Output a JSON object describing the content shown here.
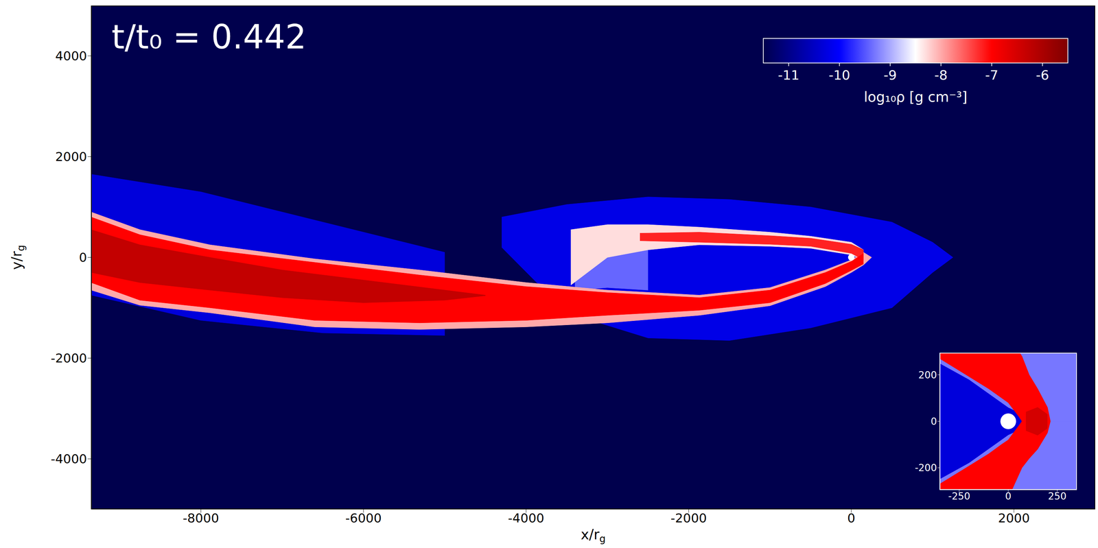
{
  "chart_data": [
    {
      "type": "density_map",
      "annotation": "t/t₀ = 0.442",
      "x_label": "x/rg",
      "y_label": "y/rg",
      "xlim": [
        -9350,
        3000
      ],
      "ylim": [
        -5000,
        5000
      ],
      "xticks": [
        -8000,
        -6000,
        -4000,
        -2000,
        0,
        2000
      ],
      "yticks": [
        -4000,
        -2000,
        0,
        2000,
        4000
      ],
      "floor": -11.5,
      "colorbar": {
        "label": "log₁₀ρ [g cm⁻³]",
        "range": [
          -11.5,
          -5.5
        ],
        "ticks": [
          -11,
          -10,
          -9,
          -8,
          -7,
          -6
        ]
      },
      "black_hole": {
        "x": 0,
        "y": 0,
        "radius": 40
      },
      "regions": [
        {
          "log_rho": -10.3,
          "x": [
            -9350,
            -8000,
            -6500,
            -5000
          ],
          "y_low": [
            -750,
            -1250,
            -1500,
            -1550
          ],
          "y_high": [
            1650,
            1300,
            700,
            100
          ]
        },
        {
          "log_rho": -10.2,
          "x": [
            -4300,
            -3500,
            -2500,
            -1500,
            -500,
            500,
            1000,
            1250
          ],
          "y_low": [
            200,
            -1100,
            -1600,
            -1650,
            -1400,
            -1000,
            -300,
            0
          ],
          "y_high": [
            800,
            1050,
            1200,
            1150,
            1000,
            700,
            300,
            0
          ]
        },
        {
          "log_rho": -9.4,
          "x": [
            -3400,
            -3000,
            -2500
          ],
          "y_low": [
            -650,
            -600,
            -650
          ],
          "y_high": [
            550,
            500,
            400
          ]
        },
        {
          "log_rho": -8.3,
          "x": [
            -3450,
            -3000,
            -2500,
            -1870,
            -1000,
            -500,
            0,
            150
          ],
          "y_low": [
            -550,
            0,
            150,
            250,
            220,
            180,
            50,
            -50
          ],
          "y_high": [
            550,
            650,
            650,
            600,
            500,
            420,
            300,
            150
          ]
        },
        {
          "log_rho": -8.0,
          "x": [
            -9350,
            -8750,
            -7890,
            -6600,
            -5310,
            -4000,
            -3000,
            -1870,
            -1000,
            -320,
            0,
            150,
            250
          ],
          "y_low": [
            -650,
            -950,
            -1100,
            -1380,
            -1430,
            -1380,
            -1300,
            -1150,
            -960,
            -580,
            -300,
            -150,
            0
          ],
          "y_high": [
            900,
            550,
            250,
            -30,
            -250,
            -500,
            -650,
            -750,
            -600,
            -250,
            -50,
            100,
            0
          ]
        },
        {
          "log_rho": -7.2,
          "x": [
            -2600,
            -1870,
            -1000,
            -500,
            0,
            150
          ],
          "y_low": [
            330,
            300,
            260,
            220,
            80,
            -50
          ],
          "y_high": [
            480,
            500,
            430,
            380,
            260,
            150
          ]
        },
        {
          "log_rho": -7.0,
          "x": [
            -9350,
            -8750,
            -7890,
            -6600,
            -5310,
            -4000,
            -3000,
            -1870,
            -1000,
            -320,
            0,
            150
          ],
          "y_low": [
            -500,
            -850,
            -1000,
            -1250,
            -1300,
            -1250,
            -1150,
            -1050,
            -900,
            -520,
            -260,
            -130
          ],
          "y_high": [
            800,
            450,
            150,
            -100,
            -350,
            -580,
            -700,
            -800,
            -650,
            -300,
            -80,
            80
          ]
        },
        {
          "log_rho": -6.3,
          "x": [
            -9350,
            -8750,
            -7890,
            -7000,
            -6000,
            -5000,
            -4500
          ],
          "y_low": [
            -300,
            -500,
            -650,
            -800,
            -900,
            -850,
            -760
          ],
          "y_high": [
            550,
            250,
            0,
            -250,
            -450,
            -650,
            -750
          ]
        }
      ]
    },
    {
      "type": "density_map",
      "xlim": [
        -350,
        350
      ],
      "ylim": [
        -295,
        295
      ],
      "xticks": [
        -250,
        0,
        250
      ],
      "yticks": [
        -200,
        0,
        200
      ],
      "floor": -10.3,
      "black_hole": {
        "x": 0,
        "y": 0,
        "radius": 40
      },
      "regions": [
        {
          "log_rho": -9.3,
          "x": [
            -350,
            -200,
            0,
            150,
            350
          ],
          "y_low": [
            250,
            180,
            60,
            0,
            0
          ],
          "y_high": [
            400,
            400,
            400,
            400,
            400
          ]
        },
        {
          "log_rho": -9.3,
          "x": [
            -350,
            -200,
            0,
            150,
            350
          ],
          "y_low": [
            -400,
            -400,
            -400,
            -400,
            -400
          ],
          "y_high": [
            -250,
            -180,
            -60,
            0,
            0
          ]
        },
        {
          "log_rho": -7.0,
          "x": [
            -350,
            -215,
            -100,
            0,
            54,
            70,
            107,
            150,
            200,
            215
          ],
          "y_low": [
            270,
            200,
            140,
            80,
            20,
            0,
            0,
            0,
            0,
            0
          ],
          "y_high": [
            400,
            400,
            400,
            400,
            300,
            280,
            200,
            140,
            60,
            0
          ]
        },
        {
          "log_rho": -7.0,
          "x": [
            -350,
            -215,
            -100,
            -35,
            0,
            70,
            107,
            150,
            200,
            215
          ],
          "y_low": [
            -400,
            -400,
            -400,
            -400,
            -330,
            -200,
            -160,
            -120,
            -50,
            0
          ],
          "y_high": [
            -270,
            -200,
            -140,
            -100,
            -80,
            0,
            0,
            0,
            0,
            0
          ]
        },
        {
          "log_rho": -6.5,
          "x": [
            90,
            150,
            200
          ],
          "y_low": [
            -40,
            -60,
            -30
          ],
          "y_high": [
            40,
            60,
            30
          ]
        }
      ]
    }
  ]
}
